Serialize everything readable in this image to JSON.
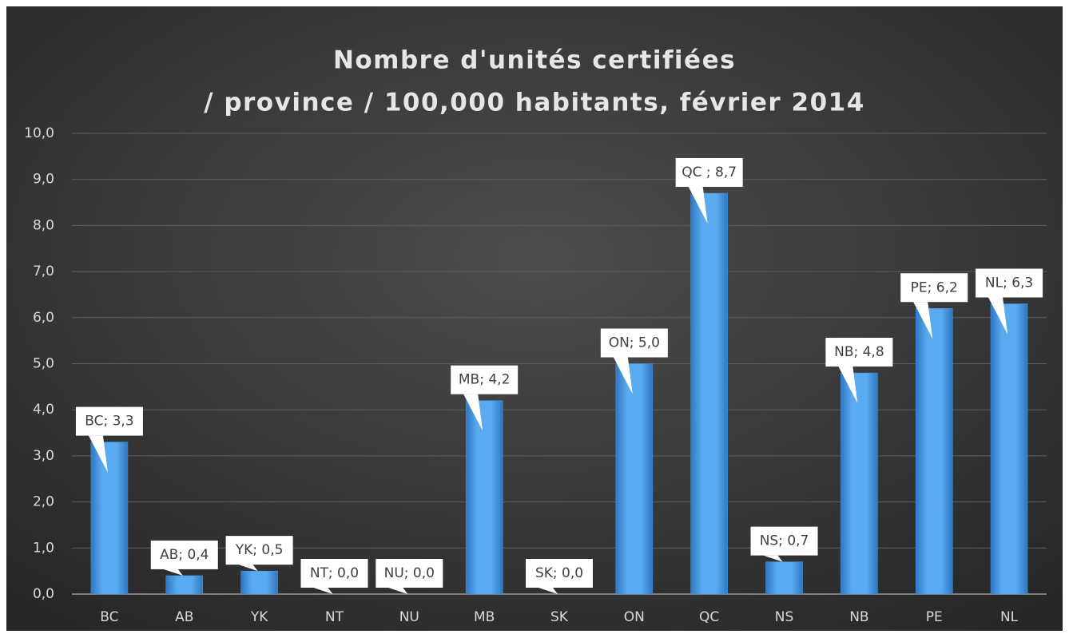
{
  "chart_data": {
    "type": "bar",
    "title": [
      "Nombre d'unités certifiées",
      "/ province / 100,000 habitants, février 2014"
    ],
    "categories": [
      "BC",
      "AB",
      "YK",
      "NT",
      "NU",
      "MB",
      "SK",
      "ON",
      "QC",
      "NS",
      "NB",
      "PE",
      "NL"
    ],
    "values": [
      3.3,
      0.4,
      0.5,
      0.0,
      0.0,
      4.2,
      0.0,
      5.0,
      8.7,
      0.7,
      4.8,
      6.2,
      6.3
    ],
    "value_labels": [
      "BC; 3,3",
      "AB; 0,4",
      "YK; 0,5",
      "NT; 0,0",
      "NU; 0,0",
      "MB; 4,2",
      "SK; 0,0",
      "ON; 5,0",
      "QC ; 8,7",
      "NS; 0,7",
      "NB; 4,8",
      "PE; 6,2",
      "NL; 6,3"
    ],
    "color": "#4a9be8",
    "ylim": [
      0,
      10
    ],
    "yticks": [
      {
        "value": 0,
        "label": "0,0"
      },
      {
        "value": 1,
        "label": "1,0"
      },
      {
        "value": 2,
        "label": "2,0"
      },
      {
        "value": 3,
        "label": "3,0"
      },
      {
        "value": 4,
        "label": "4,0"
      },
      {
        "value": 5,
        "label": "5,0"
      },
      {
        "value": 6,
        "label": "6,0"
      },
      {
        "value": 7,
        "label": "7,0"
      },
      {
        "value": 8,
        "label": "8,0"
      },
      {
        "value": 9,
        "label": "9,0"
      },
      {
        "value": 10,
        "label": "10,0"
      }
    ],
    "grid": true
  }
}
